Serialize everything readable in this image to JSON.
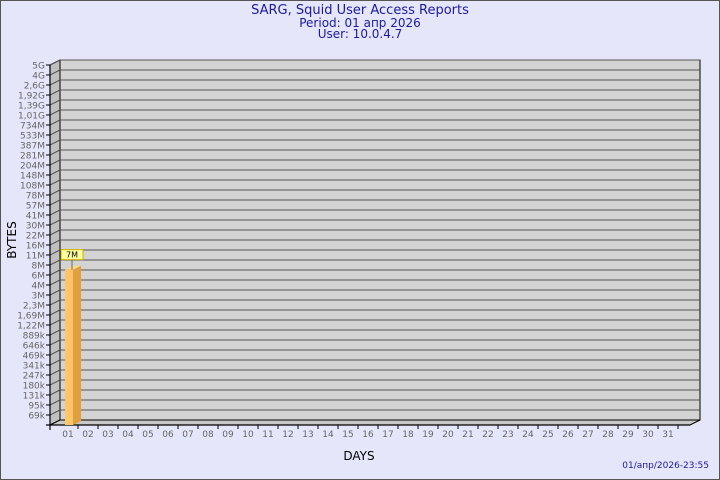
{
  "header": {
    "title": "SARG, Squid User Access Reports",
    "period": "Period: 01 апр 2026",
    "user": "User: 10.0.4.7"
  },
  "footer": {
    "timestamp": "01/апр/2026-23:55"
  },
  "chart_data": {
    "type": "bar",
    "title": "SARG, Squid User Access Reports",
    "xlabel": "DAYS",
    "ylabel": "BYTES",
    "y_scale": "log",
    "y_tick_labels": [
      "69k",
      "95k",
      "131k",
      "180k",
      "247k",
      "341k",
      "469k",
      "646k",
      "889k",
      "1,22M",
      "1,69M",
      "2,3M",
      "3M",
      "4M",
      "6M",
      "8M",
      "11M",
      "16M",
      "22M",
      "30M",
      "41M",
      "57M",
      "78M",
      "108M",
      "148M",
      "204M",
      "281M",
      "387M",
      "533M",
      "734M",
      "1,01G",
      "1,39G",
      "1,92G",
      "2,6G",
      "4G",
      "5G"
    ],
    "categories": [
      "01",
      "02",
      "03",
      "04",
      "05",
      "06",
      "07",
      "08",
      "09",
      "10",
      "11",
      "12",
      "13",
      "14",
      "15",
      "16",
      "17",
      "18",
      "19",
      "20",
      "21",
      "22",
      "23",
      "24",
      "25",
      "26",
      "27",
      "28",
      "29",
      "30",
      "31"
    ],
    "series": [
      {
        "values": [
          {
            "day": "01",
            "value": 7000000,
            "label": "7M"
          }
        ]
      }
    ],
    "grid": true,
    "colors": {
      "bar_front": "#ffc566",
      "bar_side": "#e0a040",
      "plot_bg": "#d3d3d3",
      "page_bg": "#e6e6fa",
      "text": "#1a1aa0"
    }
  }
}
